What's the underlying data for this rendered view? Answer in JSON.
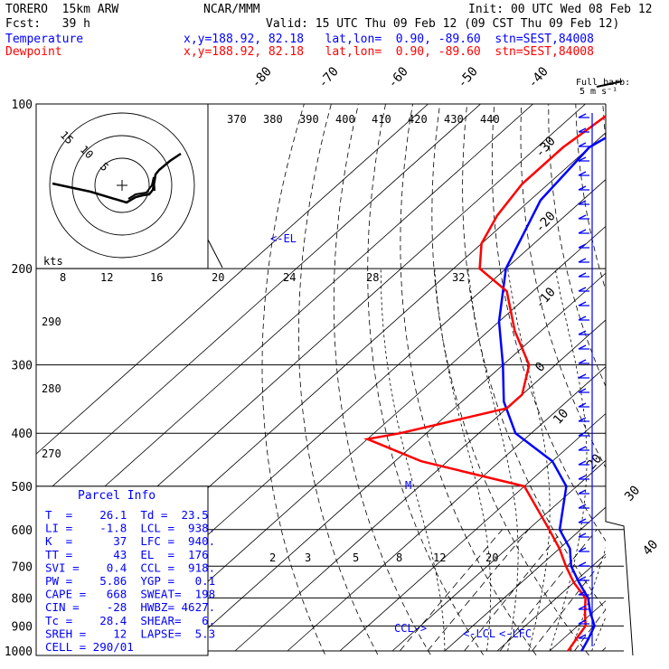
{
  "header": {
    "model": "TORERO  15km ARW",
    "center": "NCAR/MMM",
    "init": "Init: 00 UTC Wed 08 Feb 12",
    "fcst": "Fcst:   39 h",
    "valid": "Valid: 15 UTC Thu 09 Feb 12 (09 CST Thu 09 Feb 12)",
    "temp_label": "Temperature",
    "dew_label": "Dewpoint",
    "loc_line": "x,y=188.92, 82.18   lat,lon=  0.90, -89.60  stn=SEST,84008",
    "barb_title": "Full barb:",
    "barb_units": "5 m s⁻¹"
  },
  "colors": {
    "temperature": "#ff0000",
    "dewpoint": "#0000ff",
    "axes": "#000000"
  },
  "pressure_labels": [
    "100",
    "200",
    "300",
    "400",
    "500",
    "600",
    "700",
    "800",
    "900",
    "1000"
  ],
  "isotherm_labels": [
    "-80",
    "-70",
    "-60",
    "-50",
    "-40",
    "-30",
    "-20",
    "-10",
    "0",
    "10",
    "20",
    "30",
    "40"
  ],
  "theta_labels": [
    "370",
    "380",
    "390",
    "400",
    "410",
    "420",
    "430",
    "440"
  ],
  "theta_left_labels": [
    "290",
    "280",
    "270"
  ],
  "mixing_labels": [
    "2",
    "3",
    "5",
    "8",
    "12",
    "20"
  ],
  "hodo": {
    "kts": "kts",
    "ring_labels": [
      "15",
      "10",
      "5"
    ],
    "speed_labels": [
      "8",
      "12",
      "16",
      "20",
      "24",
      "28",
      "32"
    ]
  },
  "annotations": {
    "el": "<-EL",
    "m": "M",
    "ccl": "CCL->",
    "lcl": "<-LCL",
    "lfc": "<-LFC"
  },
  "parcel": {
    "title": "Parcel Info",
    "rows": [
      "T  =    26.1  Td =  23.5",
      "LI =    -1.8  LCL =  938.",
      "K  =      37  LFC =  940.",
      "TT =      43  EL  =  176",
      "SVI =    0.4  CCL =  918.",
      "PW =    5.86  YGP =   0.1",
      "CAPE =   668  SWEAT=  198",
      "CIN =    -28  HWBZ= 4627.",
      "Tc =    28.4  SHEAR=   6.",
      "SREH =    12  LAPSE=  5.3",
      "CELL = 290/01"
    ]
  },
  "chart_data": {
    "type": "line",
    "title": "",
    "xlabel": "",
    "ylabel": "",
    "ylim": [
      1000,
      100
    ],
    "series": [
      {
        "name": "Temperature",
        "x": [
          26.1,
          24.8,
          23.2,
          19.5,
          16.0,
          11.0,
          6.0,
          2.0,
          -4.0,
          -12.0,
          -20.0,
          -33.0,
          -42.0,
          -50.0,
          -60.0,
          -70.0,
          -78.0,
          -80.0,
          -75.0
        ],
        "y": [
          1000,
          950,
          900,
          850,
          800,
          750,
          700,
          650,
          600,
          500,
          450,
          400,
          350,
          300,
          250,
          200,
          150,
          120,
          100
        ]
      },
      {
        "name": "Dewpoint",
        "x": [
          23.5,
          22.5,
          21.5,
          18.5,
          15.5,
          10.0,
          5.0,
          0.0,
          -6.0,
          -20.0,
          -45.0,
          -60.0,
          -55.0,
          -40.0,
          -40.0,
          -45.0,
          -55.0,
          -65.0,
          -75.0,
          -80.0,
          -83.0,
          -85.0,
          -85.0,
          -83.0
        ],
        "y": [
          1000,
          950,
          900,
          850,
          800,
          750,
          700,
          650,
          600,
          500,
          450,
          410,
          400,
          360,
          340,
          300,
          260,
          220,
          200,
          180,
          160,
          140,
          120,
          100
        ]
      }
    ]
  }
}
